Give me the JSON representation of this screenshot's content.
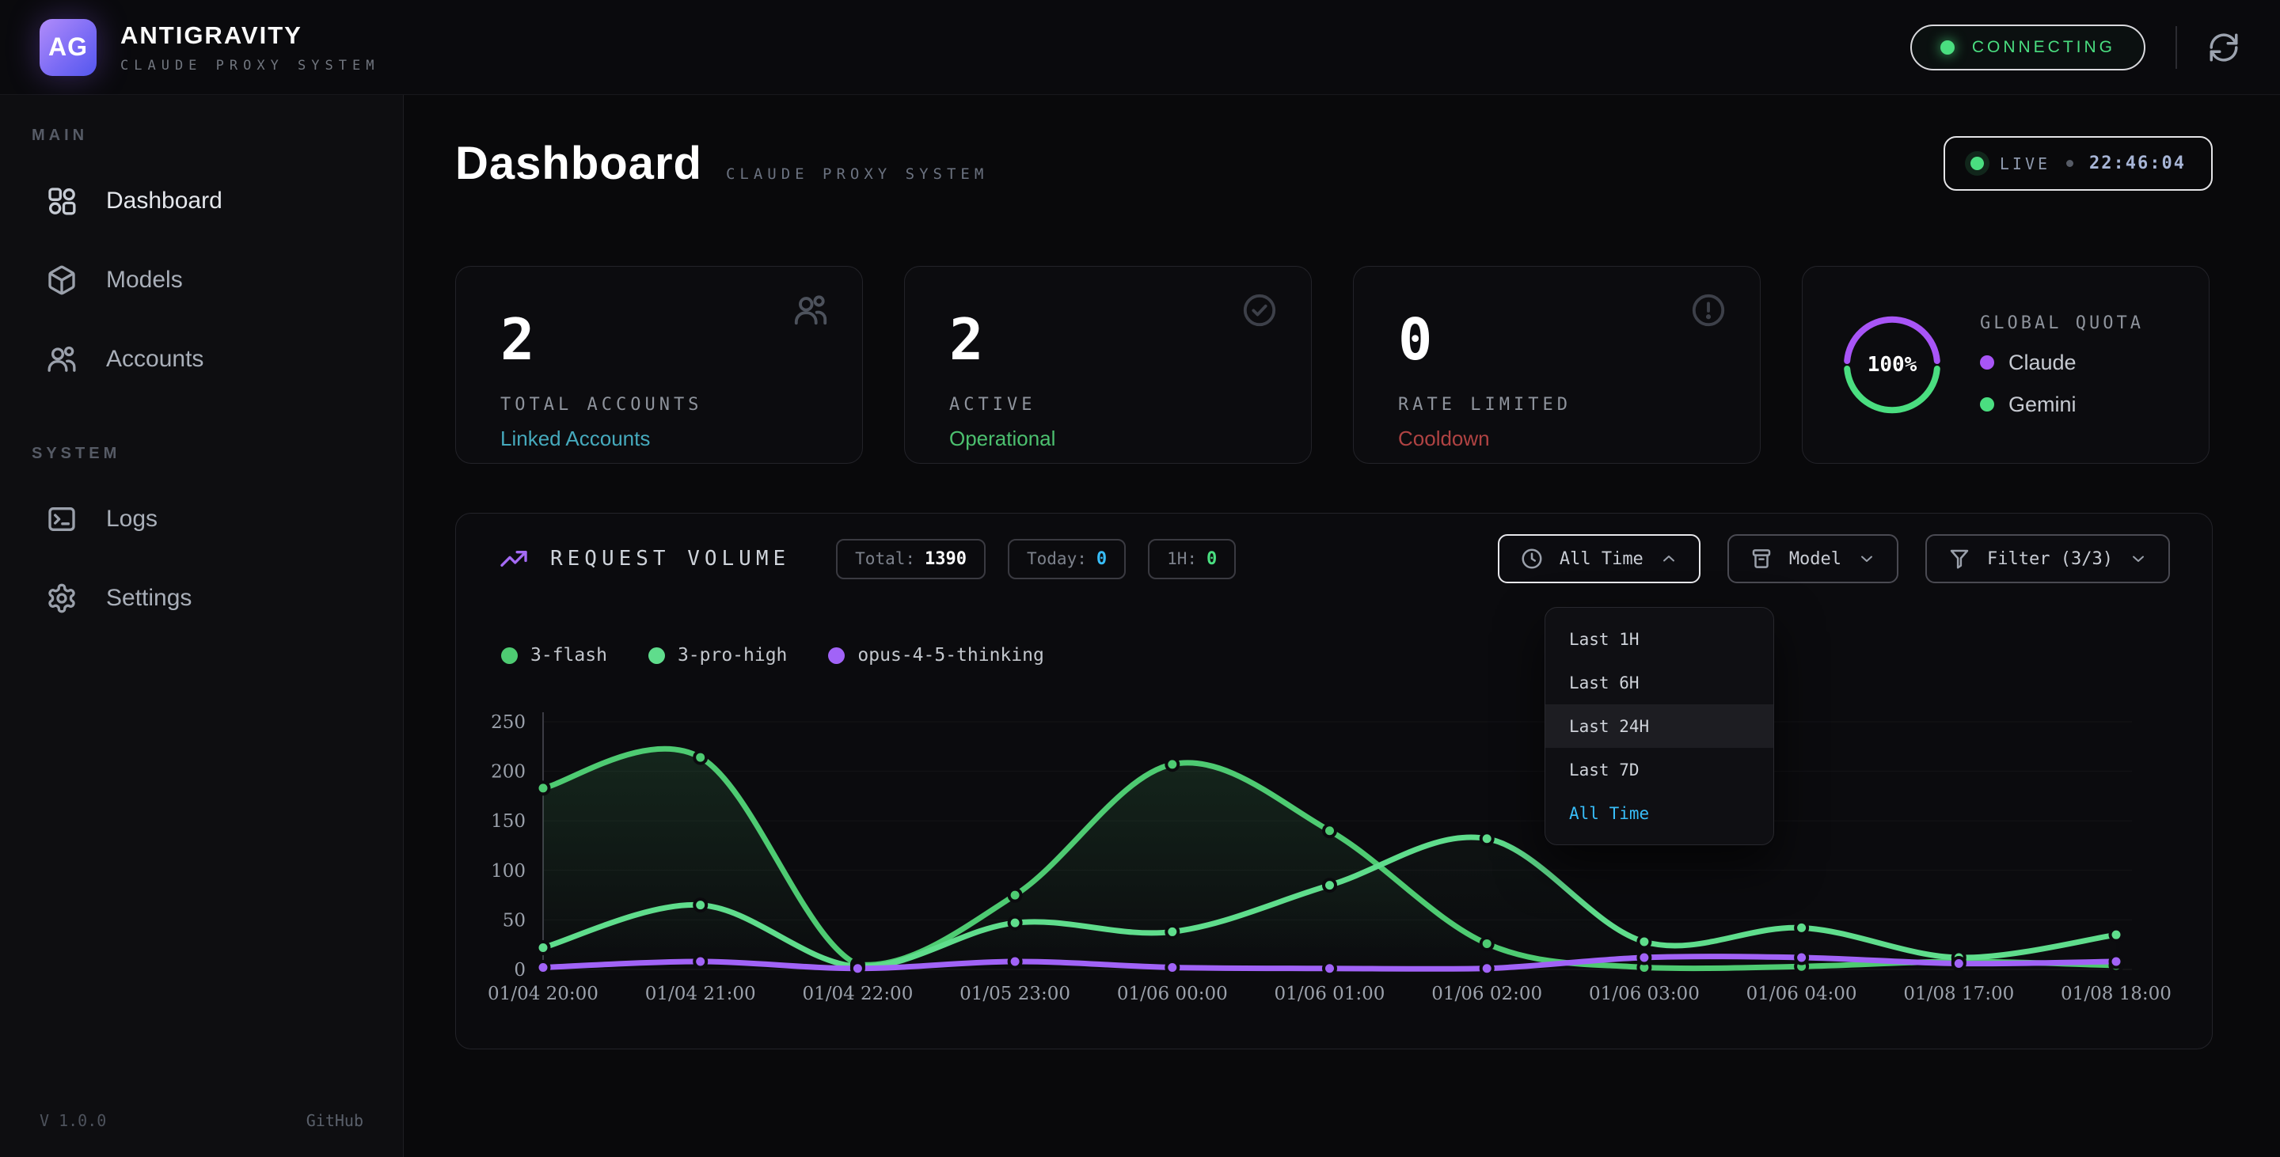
{
  "header": {
    "logo": "AG",
    "title": "ANTIGRAVITY",
    "subtitle": "CLAUDE PROXY SYSTEM",
    "status": "CONNECTING"
  },
  "sidebar": {
    "sections": [
      {
        "label": "MAIN",
        "items": [
          {
            "label": "Dashboard",
            "icon": "grid-icon",
            "active": true
          },
          {
            "label": "Models",
            "icon": "box-icon"
          },
          {
            "label": "Accounts",
            "icon": "users-icon"
          }
        ]
      },
      {
        "label": "SYSTEM",
        "items": [
          {
            "label": "Logs",
            "icon": "terminal-icon"
          },
          {
            "label": "Settings",
            "icon": "gear-icon"
          }
        ]
      }
    ],
    "version": "V 1.0.0",
    "github": "GitHub"
  },
  "page": {
    "title": "Dashboard",
    "subtitle": "CLAUDE PROXY SYSTEM",
    "live_label": "LIVE",
    "live_time": "22:46:04"
  },
  "stats": [
    {
      "value": "2",
      "label": "TOTAL ACCOUNTS",
      "sub": "Linked Accounts",
      "sub_color": "#46aabd",
      "icon": "users-icon"
    },
    {
      "value": "2",
      "label": "ACTIVE",
      "sub": "Operational",
      "sub_color": "#4cc06f",
      "icon": "check-circle-icon"
    },
    {
      "value": "0",
      "label": "RATE LIMITED",
      "sub": "Cooldown",
      "sub_color": "#b04343",
      "icon": "alert-circle-icon"
    }
  ],
  "quota": {
    "percent": "100%",
    "label": "GLOBAL QUOTA",
    "items": [
      {
        "name": "Claude",
        "color": "#a855f7"
      },
      {
        "name": "Gemini",
        "color": "#4ade80"
      }
    ]
  },
  "request_volume": {
    "title": "REQUEST VOLUME",
    "badges": [
      {
        "label": "Total:",
        "value": "1390",
        "color": "#ffffff"
      },
      {
        "label": "Today:",
        "value": "0",
        "color": "#38bdf8"
      },
      {
        "label": "1H:",
        "value": "0",
        "color": "#4ade80"
      }
    ],
    "buttons": [
      {
        "label": "All Time",
        "icon": "clock-icon",
        "chevron": "up",
        "active": true
      },
      {
        "label": "Model",
        "icon": "archive-icon",
        "chevron": "down"
      },
      {
        "label": "Filter (3/3)",
        "icon": "funnel-icon",
        "chevron": "down"
      }
    ],
    "dropdown": {
      "items": [
        {
          "label": "Last 1H"
        },
        {
          "label": "Last 6H"
        },
        {
          "label": "Last 24H",
          "highlighted": true
        },
        {
          "label": "Last 7D"
        },
        {
          "label": "All Time",
          "selected": true
        }
      ],
      "selected_color": "#38bdf8"
    }
  },
  "chart_data": {
    "type": "line",
    "title": "REQUEST VOLUME",
    "x_labels": [
      "01/04 20:00",
      "01/04 21:00",
      "01/04 22:00",
      "01/05 23:00",
      "01/06 00:00",
      "01/06 01:00",
      "01/06 02:00",
      "01/06 03:00",
      "01/06 04:00",
      "01/08 17:00",
      "01/08 18:00"
    ],
    "y_ticks": [
      0,
      50,
      100,
      150,
      200,
      250
    ],
    "ylim": [
      0,
      250
    ],
    "grid": true,
    "legend_position": "top-left",
    "series": [
      {
        "name": "3-flash",
        "color": "#4ecb72",
        "fill_opacity": 0.16,
        "values": [
          183,
          214,
          5,
          75,
          207,
          140,
          26,
          2,
          3,
          8,
          4
        ]
      },
      {
        "name": "3-pro-high",
        "color": "#5fdd8c",
        "fill_opacity": 0.07,
        "values": [
          22,
          65,
          3,
          47,
          38,
          85,
          132,
          28,
          42,
          12,
          35
        ]
      },
      {
        "name": "opus-4-5-thinking",
        "color": "#a163f7",
        "fill_opacity": 0,
        "values": [
          2,
          8,
          1,
          8,
          2,
          1,
          1,
          12,
          12,
          6,
          8
        ]
      }
    ]
  },
  "colors": {
    "accent_green": "#4ade80",
    "accent_purple": "#a855f7",
    "accent_blue": "#38bdf8"
  }
}
